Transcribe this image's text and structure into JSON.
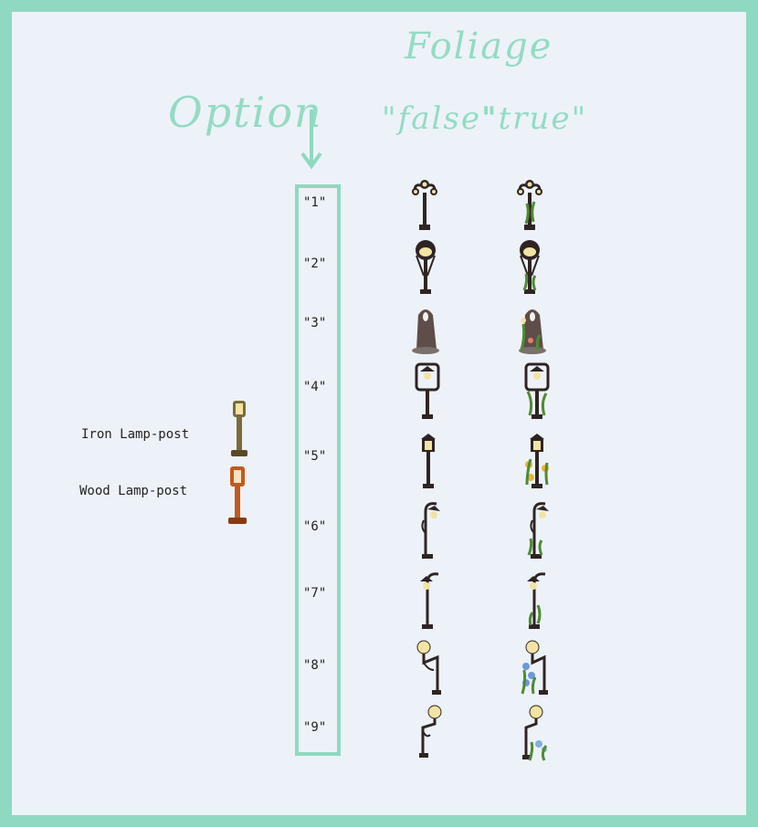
{
  "headers": {
    "foliage": "Foliage",
    "option": "Option",
    "false_label": "\"false\"",
    "true_label": "\"true\""
  },
  "options": [
    "\"1\"",
    "\"2\"",
    "\"3\"",
    "\"4\"",
    "\"5\"",
    "\"6\"",
    "\"7\"",
    "\"8\"",
    "\"9\""
  ],
  "legend": {
    "iron": "Iron Lamp-post",
    "wood": "Wood Lamp-post"
  },
  "colors": {
    "border": "#8fd8c2",
    "background": "#edf2f8",
    "lamp_dark": "#2e2424",
    "lamp_glow": "#f3e3a4",
    "foliage_green": "#4f8a34",
    "iron_post": "#7b6b3c",
    "wood_post": "#c25a1e"
  }
}
